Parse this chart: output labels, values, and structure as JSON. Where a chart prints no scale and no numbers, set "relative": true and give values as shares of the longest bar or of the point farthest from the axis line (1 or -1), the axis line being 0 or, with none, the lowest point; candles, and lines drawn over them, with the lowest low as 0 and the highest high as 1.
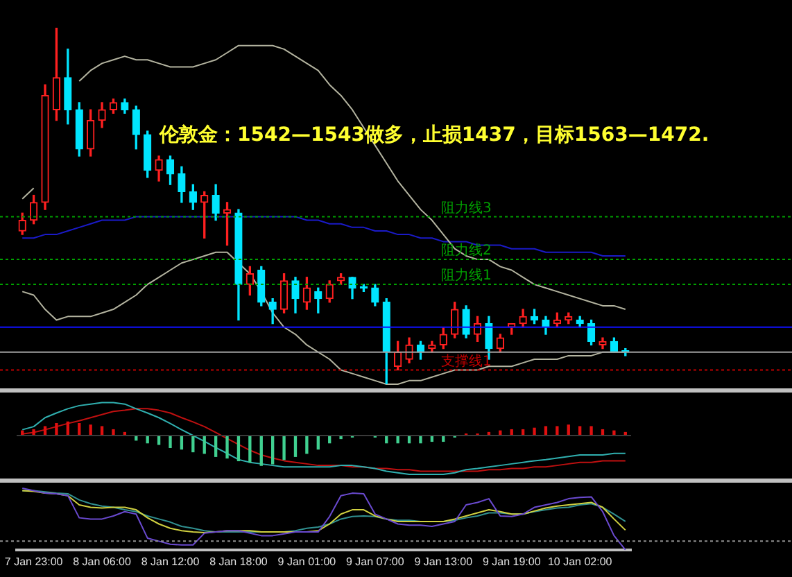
{
  "chart_data": [
    {
      "type": "candlestick",
      "title": "伦敦金：1542—1543做多，止损1437，目标1563—1472.",
      "relative": true,
      "tick_labels": false,
      "categories": [
        null,
        null,
        null,
        null,
        null,
        null,
        null,
        null,
        null,
        null,
        null,
        null,
        null,
        null,
        null,
        null,
        null,
        null,
        null,
        null,
        null,
        null,
        null,
        null,
        null,
        null,
        null,
        null,
        null,
        null,
        null,
        null,
        null,
        null,
        null,
        null,
        null,
        null,
        null,
        null,
        null,
        null,
        null,
        null,
        null,
        null,
        null,
        null,
        null,
        null,
        null,
        null,
        null,
        null
      ],
      "ohlc": [
        [
          0.43,
          0.48,
          0.42,
          0.46
        ],
        [
          0.46,
          0.53,
          0.45,
          0.51
        ],
        [
          0.51,
          0.84,
          0.49,
          0.81
        ],
        [
          0.77,
          1,
          0.74,
          0.86
        ],
        [
          0.86,
          0.94,
          0.73,
          0.77
        ],
        [
          0.77,
          0.79,
          0.64,
          0.66
        ],
        [
          0.66,
          0.77,
          0.64,
          0.74
        ],
        [
          0.74,
          0.79,
          0.72,
          0.77
        ],
        [
          0.77,
          0.8,
          0.76,
          0.79
        ],
        [
          0.79,
          0.8,
          0.76,
          0.77
        ],
        [
          0.77,
          0.78,
          0.66,
          0.7
        ],
        [
          0.7,
          0.71,
          0.58,
          0.6
        ],
        [
          0.6,
          0.64,
          0.57,
          0.63
        ],
        [
          0.63,
          0.64,
          0.56,
          0.59
        ],
        [
          0.59,
          0.61,
          0.51,
          0.54
        ],
        [
          0.54,
          0.56,
          0.49,
          0.51
        ],
        [
          0.51,
          0.54,
          0.41,
          0.53
        ],
        [
          0.53,
          0.56,
          0.46,
          0.48
        ],
        [
          0.48,
          0.51,
          0.39,
          0.49
        ],
        [
          0.48,
          0.49,
          0.18,
          0.28
        ],
        [
          0.28,
          0.33,
          0.25,
          0.31
        ],
        [
          0.32,
          0.33,
          0.22,
          0.23
        ],
        [
          0.23,
          0.24,
          0.17,
          0.21
        ],
        [
          0.21,
          0.31,
          0.2,
          0.29
        ],
        [
          0.29,
          0.3,
          0.2,
          0.24
        ],
        [
          0.23,
          0.3,
          0.21,
          0.27
        ],
        [
          0.26,
          0.27,
          0.2,
          0.24
        ],
        [
          0.24,
          0.29,
          0.23,
          0.28
        ],
        [
          0.29,
          0.31,
          0.28,
          0.3
        ],
        [
          0.3,
          0.3,
          0.24,
          0.27
        ],
        [
          0.27,
          0.28,
          0.26,
          0.27
        ],
        [
          0.27,
          0.28,
          0.22,
          0.23
        ],
        [
          0.23,
          0.24,
          0,
          0.09
        ],
        [
          0.05,
          0.12,
          0.04,
          0.09
        ],
        [
          0.07,
          0.13,
          0.06,
          0.11
        ],
        [
          0.11,
          0.12,
          0.07,
          0.09
        ],
        [
          0.1,
          0.12,
          0.09,
          0.11
        ],
        [
          0.11,
          0.16,
          0.1,
          0.14
        ],
        [
          0.14,
          0.23,
          0.13,
          0.21
        ],
        [
          0.21,
          0.22,
          0.13,
          0.14
        ],
        [
          0.14,
          0.19,
          0.12,
          0.17
        ],
        [
          0.17,
          0.19,
          0.07,
          0.1
        ],
        [
          0.1,
          0.14,
          0.09,
          0.13
        ],
        [
          0.16,
          0.17,
          0.14,
          0.17
        ],
        [
          0.17,
          0.21,
          0.16,
          0.19
        ],
        [
          0.19,
          0.21,
          0.17,
          0.18
        ],
        [
          0.18,
          0.19,
          0.14,
          0.16
        ],
        [
          0.17,
          0.2,
          0.16,
          0.18
        ],
        [
          0.18,
          0.2,
          0.17,
          0.19
        ],
        [
          0.18,
          0.19,
          0.16,
          0.17
        ],
        [
          0.17,
          0.18,
          0.11,
          0.12
        ],
        [
          0.11,
          0.13,
          0.1,
          0.12
        ],
        [
          0.12,
          0.13,
          0.09,
          0.09
        ],
        [
          0.09,
          0.1,
          0.08,
          0.09
        ]
      ],
      "colors": [
        "#ff2020",
        "#ff2020",
        "#ff2020",
        "#ff2020",
        "#00e5ff",
        "#00e5ff",
        "#ff2020",
        "#ff2020",
        "#ff2020",
        "#00e5ff",
        "#00e5ff",
        "#00e5ff",
        "#ff2020",
        "#00e5ff",
        "#00e5ff",
        "#00e5ff",
        "#ff2020",
        "#00e5ff",
        "#ff2020",
        "#00e5ff",
        "#ff2020",
        "#00e5ff",
        "#00e5ff",
        "#ff2020",
        "#00e5ff",
        "#ff2020",
        "#00e5ff",
        "#ff2020",
        "#ff2020",
        "#00e5ff",
        "#00e5ff",
        "#00e5ff",
        "#00e5ff",
        "#ff2020",
        "#ff2020",
        "#00e5ff",
        "#ff2020",
        "#ff2020",
        "#ff2020",
        "#00e5ff",
        "#ff2020",
        "#00e5ff",
        "#ff2020",
        "#ff2020",
        "#ff2020",
        "#00e5ff",
        "#00e5ff",
        "#ff2020",
        "#ff2020",
        "#00e5ff",
        "#00e5ff",
        "#ff2020",
        "#00e5ff",
        "#00e5ff"
      ],
      "series": [
        {
          "type": "line",
          "color": "#b4b4a0",
          "values": [
            0.52,
            0.55,
            null,
            null,
            null,
            0.85,
            0.88,
            0.9,
            0.91,
            0.92,
            0.91,
            0.91,
            0.9,
            0.89,
            0.89,
            0.89,
            0.9,
            0.91,
            0.93,
            0.95,
            0.95,
            0.95,
            0.95,
            0.94,
            0.92,
            0.9,
            0.88,
            0.84,
            0.81,
            0.77,
            0.72,
            0.67,
            0.62,
            0.57,
            0.53,
            0.49,
            0.46,
            0.42,
            0.38,
            0.36,
            0.35,
            0.35,
            0.33,
            0.32,
            0.3,
            0.28,
            0.27,
            0.26,
            0.25,
            0.24,
            0.23,
            0.22,
            0.22,
            0.21
          ]
        },
        {
          "type": "line",
          "color": "#b4b4a0",
          "values": [
            0.26,
            0.25,
            0.21,
            0.18,
            0.19,
            0.19,
            0.19,
            0.2,
            0.21,
            0.23,
            0.25,
            0.28,
            0.3,
            0.32,
            0.34,
            0.35,
            0.36,
            0.37,
            0.37,
            0.34,
            0.31,
            0.26,
            0.2,
            0.16,
            0.14,
            0.11,
            0.09,
            0.07,
            0.04,
            0.03,
            0.02,
            0.01,
            0,
            0,
            0.01,
            0.01,
            0.02,
            0.03,
            0.04,
            0.04,
            0.04,
            0.05,
            0.05,
            0.05,
            0.06,
            0.07,
            0.07,
            0.07,
            0.08,
            0.08,
            0.08,
            0.09,
            0.09,
            0.09
          ]
        },
        {
          "type": "line",
          "color": "#1a1ac8",
          "values": [
            0.41,
            0.41,
            0.42,
            0.42,
            0.43,
            0.44,
            0.45,
            0.46,
            0.46,
            0.46,
            0.47,
            0.47,
            0.47,
            0.47,
            0.47,
            0.47,
            0.47,
            0.47,
            0.47,
            0.47,
            0.47,
            0.47,
            0.47,
            0.47,
            0.47,
            0.46,
            0.46,
            0.45,
            0.45,
            0.44,
            0.44,
            0.43,
            0.43,
            0.42,
            0.42,
            0.41,
            0.41,
            0.4,
            0.4,
            0.4,
            0.39,
            0.39,
            0.39,
            0.38,
            0.38,
            0.38,
            0.37,
            0.37,
            0.37,
            0.37,
            0.37,
            0.36,
            0.36,
            0.36
          ]
        }
      ],
      "ref_lines": [
        {
          "axis": "y",
          "value": 0.47,
          "label": "阻力线3",
          "color": "#00a000",
          "line_style": "dotted"
        },
        {
          "axis": "y",
          "value": 0.35,
          "label": "阻力线2",
          "color": "#00a000",
          "line_style": "dotted"
        },
        {
          "axis": "y",
          "value": 0.28,
          "label": "阻力线1",
          "color": "#00a000",
          "line_style": "dotted"
        },
        {
          "axis": "y",
          "value": 0.16,
          "color": "#1010ff",
          "line_style": "solid"
        },
        {
          "axis": "y",
          "value": 0.09,
          "color": "#a0a0a0",
          "line_style": "solid"
        },
        {
          "axis": "y",
          "value": 0.04,
          "label": "支撑线1",
          "color": "#c00000",
          "line_style": "dotted"
        }
      ]
    },
    {
      "type": "bar",
      "relative": true,
      "tick_labels": false,
      "categories": [
        null,
        null,
        null,
        null,
        null,
        null,
        null,
        null,
        null,
        null,
        null,
        null,
        null,
        null,
        null,
        null,
        null,
        null,
        null,
        null,
        null,
        null,
        null,
        null,
        null,
        null,
        null,
        null,
        null,
        null,
        null,
        null,
        null,
        null,
        null,
        null,
        null,
        null,
        null,
        null,
        null,
        null,
        null,
        null,
        null,
        null,
        null,
        null,
        null,
        null,
        null,
        null,
        null,
        null
      ],
      "series": [
        {
          "type": "bar",
          "values": [
            0.12,
            0.15,
            0.23,
            0.31,
            0.35,
            0.31,
            0.27,
            0.23,
            0.15,
            0.08,
            -0.12,
            -0.19,
            -0.23,
            -0.31,
            -0.35,
            -0.42,
            -0.46,
            -0.54,
            -0.58,
            -0.65,
            -0.69,
            -0.77,
            -0.73,
            -0.62,
            -0.54,
            -0.46,
            -0.35,
            -0.19,
            -0.08,
            -0.04,
            0,
            -0.04,
            -0.19,
            -0.19,
            -0.19,
            -0.19,
            -0.15,
            -0.15,
            -0.04,
            0.04,
            0.04,
            0.08,
            0.12,
            0.15,
            0.15,
            0.19,
            0.23,
            0.23,
            0.27,
            0.23,
            0.23,
            0.15,
            0.12,
            0.08
          ],
          "colors": [
            "#e01010",
            "#e01010",
            "#e01010",
            "#e01010",
            "#e01010",
            "#e01010",
            "#e01010",
            "#e01010",
            "#e01010",
            "#e01010",
            "#40d090",
            "#40d090",
            "#40d090",
            "#40d090",
            "#40d090",
            "#40d090",
            "#40d090",
            "#40d090",
            "#40d090",
            "#40d090",
            "#40d090",
            "#40d090",
            "#40d090",
            "#40d090",
            "#40d090",
            "#40d090",
            "#40d090",
            "#40d090",
            "#40d090",
            "#40d090",
            "#40d090",
            "#40d090",
            "#40d090",
            "#40d090",
            "#40d090",
            "#40d090",
            "#40d090",
            "#40d090",
            "#40d090",
            "#e01010",
            "#e01010",
            "#e01010",
            "#e01010",
            "#e01010",
            "#e01010",
            "#e01010",
            "#e01010",
            "#e01010",
            "#e01010",
            "#e01010",
            "#e01010",
            "#e01010",
            "#e01010",
            "#e01010"
          ]
        },
        {
          "type": "line",
          "color": "#30b0b0",
          "values": [
            0.15,
            0.23,
            0.46,
            0.58,
            0.69,
            0.77,
            0.81,
            0.85,
            0.85,
            0.81,
            0.69,
            0.58,
            0.46,
            0.31,
            0.15,
            0,
            -0.15,
            -0.31,
            -0.46,
            -0.62,
            -0.69,
            -0.73,
            -0.77,
            -0.81,
            -0.81,
            -0.81,
            -0.81,
            -0.81,
            -0.77,
            -0.77,
            -0.81,
            -0.85,
            -0.92,
            -0.96,
            -1,
            -1,
            -1,
            -1,
            -0.96,
            -0.88,
            -0.85,
            -0.81,
            -0.77,
            -0.73,
            -0.69,
            -0.65,
            -0.62,
            -0.58,
            -0.54,
            -0.5,
            -0.5,
            -0.5,
            -0.46,
            -0.46
          ]
        },
        {
          "type": "line",
          "color": "#c01010",
          "values": [
            0.04,
            0.08,
            0.15,
            0.23,
            0.31,
            0.38,
            0.46,
            0.54,
            0.62,
            0.65,
            0.69,
            0.69,
            0.65,
            0.58,
            0.46,
            0.35,
            0.23,
            0.08,
            -0.08,
            -0.23,
            -0.38,
            -0.5,
            -0.58,
            -0.65,
            -0.69,
            -0.73,
            -0.77,
            -0.77,
            -0.77,
            -0.81,
            -0.81,
            -0.85,
            -0.85,
            -0.88,
            -0.88,
            -0.92,
            -0.92,
            -0.92,
            -0.92,
            -0.92,
            -0.92,
            -0.88,
            -0.88,
            -0.85,
            -0.85,
            -0.81,
            -0.81,
            -0.77,
            -0.73,
            -0.69,
            -0.69,
            -0.65,
            -0.65,
            -0.65
          ]
        }
      ]
    },
    {
      "type": "line",
      "relative": true,
      "categories": [
        null,
        "7 Jan 23:00",
        null,
        null,
        null,
        null,
        null,
        "8 Jan 06:00",
        null,
        null,
        null,
        null,
        null,
        "8 Jan 12:00",
        null,
        null,
        null,
        null,
        null,
        "8 Jan 18:00",
        null,
        null,
        null,
        null,
        null,
        "9 Jan 01:00",
        null,
        null,
        null,
        null,
        null,
        "9 Jan 07:00",
        null,
        null,
        null,
        null,
        null,
        "9 Jan 13:00",
        null,
        null,
        null,
        null,
        null,
        "9 Jan 19:00",
        null,
        null,
        null,
        null,
        null,
        "10 Jan 02:00",
        null,
        null,
        null,
        null
      ],
      "series": [
        {
          "color": "#6a4ad0",
          "values": [
            1,
            0.96,
            0.92,
            0.91,
            0.88,
            0.52,
            0.5,
            0.5,
            0.55,
            0.62,
            0.58,
            0.19,
            0.14,
            0.09,
            0.08,
            0.08,
            0.27,
            0.29,
            0.31,
            0.31,
            0.27,
            0.23,
            0.23,
            0.26,
            0.29,
            0.29,
            0.29,
            0.54,
            0.88,
            0.92,
            0.91,
            0.58,
            0.5,
            0.42,
            0.4,
            0.4,
            0.38,
            0.42,
            0.46,
            0.73,
            0.77,
            0.83,
            0.55,
            0.54,
            0.58,
            0.69,
            0.73,
            0.77,
            0.83,
            0.85,
            0.86,
            0.62,
            0.23,
            0
          ]
        },
        {
          "color": "#d0d040",
          "values": [
            0.96,
            0.95,
            0.92,
            0.91,
            0.88,
            0.73,
            0.69,
            0.68,
            0.69,
            0.69,
            0.65,
            0.52,
            0.42,
            0.35,
            0.31,
            0.29,
            0.28,
            0.29,
            0.31,
            0.31,
            0.31,
            0.29,
            0.29,
            0.29,
            0.29,
            0.29,
            0.31,
            0.42,
            0.58,
            0.65,
            0.65,
            0.55,
            0.5,
            0.46,
            0.46,
            0.46,
            0.46,
            0.46,
            0.5,
            0.55,
            0.6,
            0.65,
            0.62,
            0.58,
            0.58,
            0.63,
            0.68,
            0.71,
            0.73,
            0.75,
            0.77,
            0.69,
            0.5,
            0.32
          ]
        },
        {
          "color": "#309090",
          "values": [
            0.96,
            0.96,
            0.94,
            0.92,
            0.91,
            0.81,
            0.75,
            0.71,
            0.69,
            0.65,
            0.62,
            0.55,
            0.5,
            0.45,
            0.38,
            0.35,
            0.31,
            0.29,
            0.29,
            0.29,
            0.29,
            0.29,
            0.29,
            0.29,
            0.31,
            0.35,
            0.37,
            0.42,
            0.5,
            0.54,
            0.55,
            0.54,
            0.5,
            0.48,
            0.48,
            0.46,
            0.46,
            0.46,
            0.48,
            0.52,
            0.55,
            0.6,
            0.6,
            0.58,
            0.58,
            0.62,
            0.65,
            0.68,
            0.69,
            0.73,
            0.75,
            0.69,
            0.58,
            0.46
          ]
        }
      ],
      "ref_lines": [
        {
          "axis": "y",
          "value": 0.14,
          "color": "#909090",
          "line_style": "dotted"
        }
      ]
    }
  ]
}
